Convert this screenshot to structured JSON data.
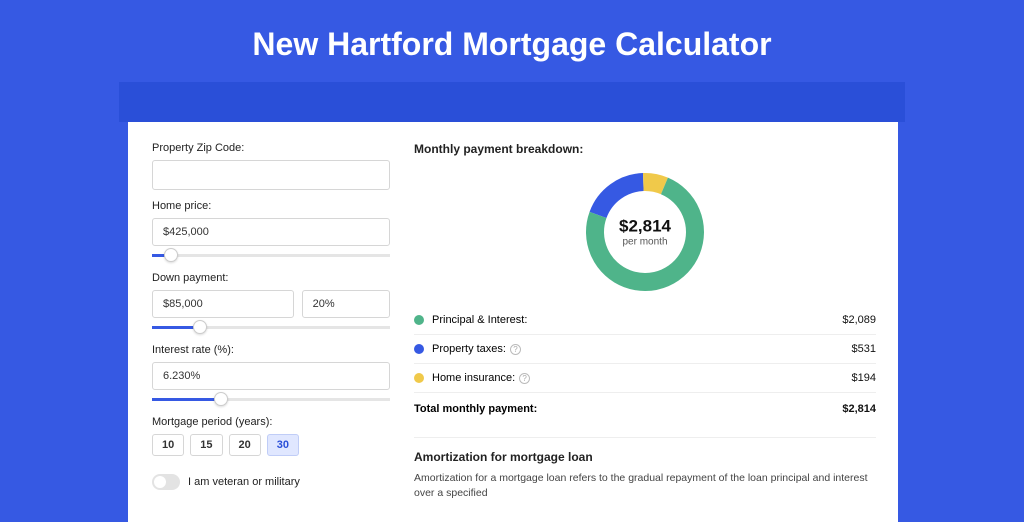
{
  "page": {
    "title": "New Hartford Mortgage Calculator",
    "bg_color": "#3659e3",
    "strip_color": "#2a4fd8",
    "card_bg": "#ffffff"
  },
  "form": {
    "zip": {
      "label": "Property Zip Code:",
      "value": ""
    },
    "price": {
      "label": "Home price:",
      "value": "$425,000",
      "slider_pct": 8
    },
    "down": {
      "label": "Down payment:",
      "amount": "$85,000",
      "pct": "20%",
      "slider_pct": 20
    },
    "rate": {
      "label": "Interest rate (%):",
      "value": "6.230%",
      "slider_pct": 29
    },
    "period": {
      "label": "Mortgage period (years):",
      "options": [
        "10",
        "15",
        "20",
        "30"
      ],
      "selected": "30"
    },
    "veteran": {
      "label": "I am veteran or military",
      "on": false
    }
  },
  "breakdown": {
    "title": "Monthly payment breakdown:",
    "donut": {
      "center_value": "$2,814",
      "center_sub": "per month",
      "slices": [
        {
          "label": "Principal & Interest",
          "value_num": 2089,
          "color": "#4fb48a",
          "pct": 74.2
        },
        {
          "label": "Property taxes",
          "value_num": 531,
          "color": "#3659e3",
          "pct": 18.9
        },
        {
          "label": "Home insurance",
          "value_num": 194,
          "color": "#f0c94a",
          "pct": 6.9
        }
      ],
      "stroke_width": 18,
      "bg_color": "#ffffff"
    },
    "items": [
      {
        "label": "Principal & Interest:",
        "value": "$2,089",
        "color": "#4fb48a",
        "has_info": false
      },
      {
        "label": "Property taxes:",
        "value": "$531",
        "color": "#3659e3",
        "has_info": true
      },
      {
        "label": "Home insurance:",
        "value": "$194",
        "color": "#f0c94a",
        "has_info": true
      }
    ],
    "total": {
      "label": "Total monthly payment:",
      "value": "$2,814"
    }
  },
  "amort": {
    "title": "Amortization for mortgage loan",
    "text": "Amortization for a mortgage loan refers to the gradual repayment of the loan principal and interest over a specified"
  }
}
